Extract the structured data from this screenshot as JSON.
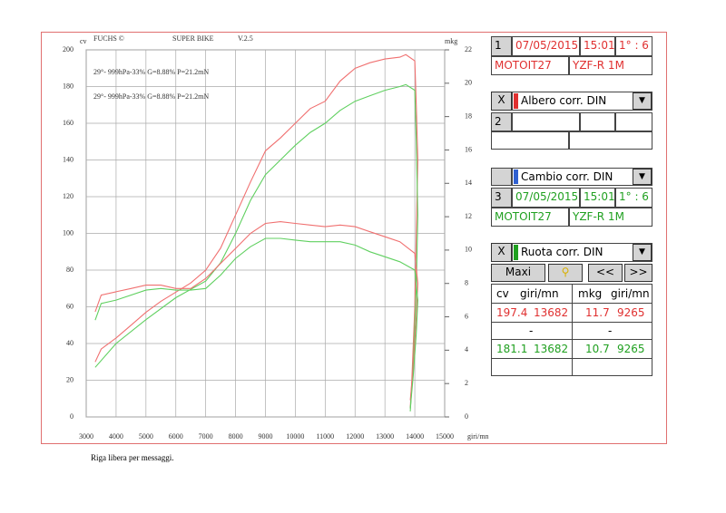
{
  "chart_data": {
    "type": "line",
    "header": [
      "FUCHS ©",
      "SUPER BIKE",
      "V.2.5"
    ],
    "y_label": "cv",
    "y2_label": "mkg",
    "x_label": "giri/mn",
    "annotations": [
      {
        "text": "29°- 999hPa-33% G=8.88% P=21.2mN",
        "color": "#f07070"
      },
      {
        "text": "29°- 999hPa-33% G=8.88% P=21.2mN",
        "color": "#60d060"
      }
    ],
    "xlim": [
      3000,
      15000
    ],
    "xticks": [
      3000,
      4000,
      5000,
      6000,
      7000,
      8000,
      9000,
      10000,
      11000,
      12000,
      13000,
      14000,
      15000
    ],
    "ylim": [
      0,
      200
    ],
    "yticks": [
      0,
      20,
      40,
      60,
      80,
      100,
      120,
      140,
      160,
      180,
      200
    ],
    "y2lim": [
      0,
      22
    ],
    "y2ticks": [
      0,
      2,
      4,
      6,
      8,
      10,
      12,
      14,
      16,
      18,
      20,
      22
    ],
    "grid": true,
    "series": [
      {
        "color": "#f07070",
        "axis": "y",
        "x": [
          3300,
          3500,
          4000,
          4500,
          5000,
          5500,
          6000,
          6500,
          7000,
          7500,
          8000,
          8500,
          9000,
          9500,
          10000,
          10500,
          11000,
          11500,
          12000,
          12500,
          13000,
          13500,
          13700,
          14000,
          14050,
          14100,
          14050,
          14000,
          13900,
          13850
        ],
        "values": [
          30,
          37,
          43,
          50,
          57,
          63,
          68,
          73,
          80,
          92,
          110,
          128,
          145,
          152,
          160,
          168,
          172,
          183,
          190,
          193,
          195,
          196,
          197.4,
          194,
          170,
          140,
          100,
          60,
          20,
          5
        ]
      },
      {
        "color": "#60d060",
        "axis": "y",
        "x": [
          3300,
          4000,
          5000,
          6000,
          7000,
          7500,
          8000,
          8500,
          9000,
          9500,
          10000,
          10500,
          11000,
          11500,
          12000,
          12500,
          13000,
          13500,
          13700,
          14000,
          14050,
          14100,
          14050,
          13950,
          13850
        ],
        "values": [
          27,
          40,
          53,
          65,
          74,
          84,
          100,
          118,
          132,
          140,
          148,
          155,
          160,
          167,
          172,
          175,
          178,
          180,
          181.1,
          178,
          150,
          110,
          70,
          30,
          3
        ]
      },
      {
        "color": "#f07070",
        "axis": "y2",
        "x": [
          3300,
          3500,
          4000,
          4500,
          5000,
          5500,
          6000,
          6500,
          7000,
          7500,
          8000,
          8500,
          9000,
          9500,
          10000,
          10500,
          11000,
          11500,
          12000,
          12500,
          13000,
          13500,
          14000,
          14100,
          14050,
          13950,
          13850
        ],
        "values": [
          6.3,
          7.3,
          7.5,
          7.7,
          7.9,
          7.9,
          7.7,
          7.7,
          8.3,
          9.2,
          10.1,
          11.0,
          11.6,
          11.7,
          11.6,
          11.5,
          11.4,
          11.5,
          11.4,
          11.1,
          10.8,
          10.5,
          9.8,
          8,
          6,
          3,
          1
        ]
      },
      {
        "color": "#60d060",
        "axis": "y2",
        "x": [
          3300,
          3500,
          4000,
          5000,
          5500,
          6000,
          6500,
          7000,
          7500,
          8000,
          8500,
          9000,
          9500,
          10000,
          10500,
          11000,
          11500,
          12000,
          12500,
          13000,
          13500,
          14000,
          14100,
          14050,
          13950,
          13850
        ],
        "values": [
          5.8,
          6.8,
          7.0,
          7.6,
          7.7,
          7.6,
          7.6,
          7.7,
          8.5,
          9.5,
          10.2,
          10.7,
          10.7,
          10.6,
          10.5,
          10.5,
          10.5,
          10.3,
          9.9,
          9.6,
          9.3,
          8.8,
          7,
          5,
          2.5,
          0.5
        ]
      }
    ]
  },
  "panel": {
    "close": "X",
    "run1": {
      "index": "1",
      "date": "07/05/2015",
      "time": "15:01",
      "gear": "1° : 6",
      "bike": "MOTOIT27",
      "model": "YZF-R 1M",
      "correction": "Albero corr. DIN"
    },
    "run2": {
      "index": "2",
      "correction": "Cambio corr. DIN"
    },
    "run3": {
      "index": "3",
      "date": "07/05/2015",
      "time": "15:01",
      "gear": "1° : 6",
      "bike": "MOTOIT27",
      "model": "YZF-R 1M",
      "correction": "Ruota corr. DIN"
    },
    "buttons": {
      "maxi": "Maxi",
      "prev": "<<",
      "next": ">>"
    },
    "table": {
      "headers": [
        "cv",
        "giri/mn",
        "mkg",
        "giri/mn"
      ],
      "rows": [
        [
          197.4,
          13682,
          11.7,
          9265
        ],
        [
          "-",
          "-"
        ],
        [
          181.1,
          13682,
          10.7,
          9265
        ]
      ]
    }
  },
  "footer": "Riga libera per messaggi."
}
